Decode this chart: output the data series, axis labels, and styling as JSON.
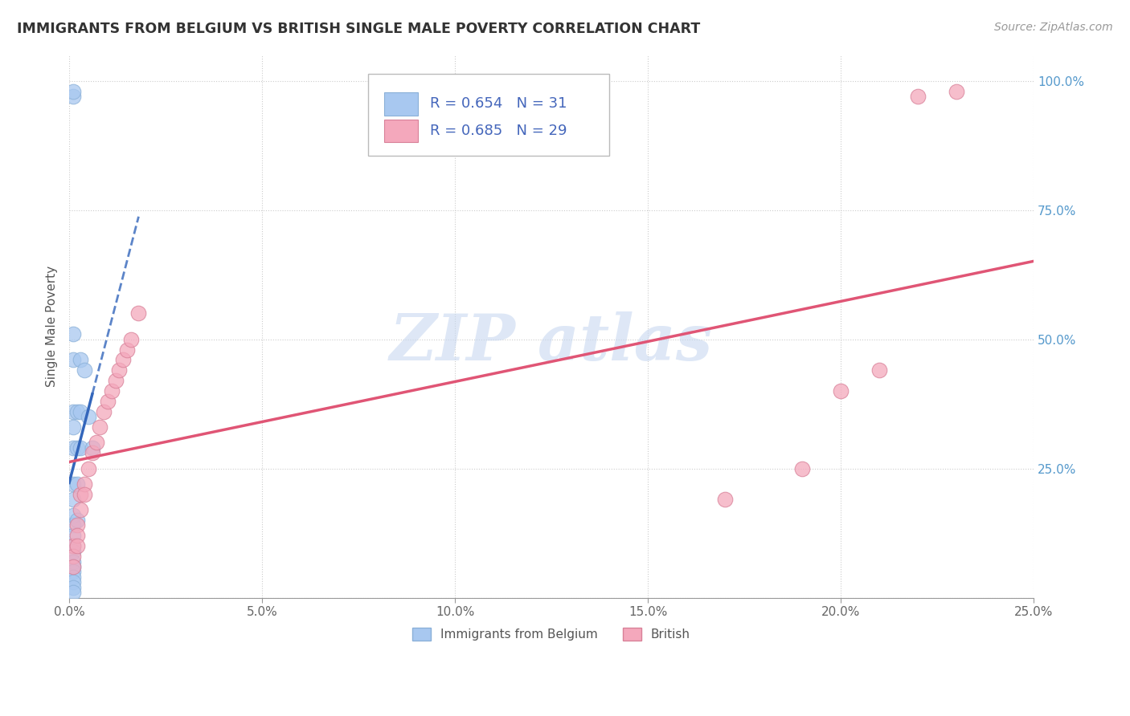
{
  "title": "IMMIGRANTS FROM BELGIUM VS BRITISH SINGLE MALE POVERTY CORRELATION CHART",
  "source": "Source: ZipAtlas.com",
  "ylabel": "Single Male Poverty",
  "legend_blue": {
    "R": 0.654,
    "N": 31,
    "label": "Immigrants from Belgium"
  },
  "legend_pink": {
    "R": 0.685,
    "N": 29,
    "label": "British"
  },
  "blue_color": "#A8C8F0",
  "pink_color": "#F4A8BC",
  "blue_line_color": "#3366BB",
  "pink_line_color": "#E05575",
  "blue_scatter": [
    [
      0.001,
      0.97
    ],
    [
      0.001,
      0.98
    ],
    [
      0.001,
      0.46
    ],
    [
      0.001,
      0.51
    ],
    [
      0.001,
      0.36
    ],
    [
      0.001,
      0.33
    ],
    [
      0.001,
      0.29
    ],
    [
      0.001,
      0.22
    ],
    [
      0.001,
      0.19
    ],
    [
      0.001,
      0.16
    ],
    [
      0.001,
      0.14
    ],
    [
      0.001,
      0.12
    ],
    [
      0.001,
      0.1
    ],
    [
      0.001,
      0.09
    ],
    [
      0.001,
      0.07
    ],
    [
      0.001,
      0.06
    ],
    [
      0.001,
      0.05
    ],
    [
      0.001,
      0.04
    ],
    [
      0.001,
      0.03
    ],
    [
      0.001,
      0.02
    ],
    [
      0.001,
      0.01
    ],
    [
      0.002,
      0.36
    ],
    [
      0.002,
      0.29
    ],
    [
      0.002,
      0.22
    ],
    [
      0.002,
      0.15
    ],
    [
      0.003,
      0.46
    ],
    [
      0.003,
      0.36
    ],
    [
      0.003,
      0.29
    ],
    [
      0.004,
      0.44
    ],
    [
      0.005,
      0.35
    ],
    [
      0.006,
      0.29
    ]
  ],
  "pink_scatter": [
    [
      0.001,
      0.1
    ],
    [
      0.001,
      0.08
    ],
    [
      0.001,
      0.06
    ],
    [
      0.002,
      0.14
    ],
    [
      0.002,
      0.12
    ],
    [
      0.002,
      0.1
    ],
    [
      0.003,
      0.2
    ],
    [
      0.003,
      0.17
    ],
    [
      0.004,
      0.22
    ],
    [
      0.004,
      0.2
    ],
    [
      0.005,
      0.25
    ],
    [
      0.006,
      0.28
    ],
    [
      0.007,
      0.3
    ],
    [
      0.008,
      0.33
    ],
    [
      0.009,
      0.36
    ],
    [
      0.01,
      0.38
    ],
    [
      0.011,
      0.4
    ],
    [
      0.012,
      0.42
    ],
    [
      0.013,
      0.44
    ],
    [
      0.014,
      0.46
    ],
    [
      0.015,
      0.48
    ],
    [
      0.016,
      0.5
    ],
    [
      0.018,
      0.55
    ],
    [
      0.17,
      0.19
    ],
    [
      0.19,
      0.25
    ],
    [
      0.2,
      0.4
    ],
    [
      0.21,
      0.44
    ],
    [
      0.22,
      0.97
    ],
    [
      0.23,
      0.98
    ]
  ],
  "xlim": [
    0.0,
    0.25
  ],
  "ylim": [
    0.0,
    1.05
  ],
  "xtick_vals": [
    0.0,
    0.05,
    0.1,
    0.15,
    0.2,
    0.25
  ],
  "xtick_labels": [
    "0.0%",
    "5.0%",
    "10.0%",
    "15.0%",
    "20.0%",
    "25.0%"
  ],
  "ytick_vals": [
    0.0,
    0.25,
    0.5,
    0.75,
    1.0
  ],
  "ytick_labels": [
    "",
    "25.0%",
    "50.0%",
    "75.0%",
    "100.0%"
  ]
}
